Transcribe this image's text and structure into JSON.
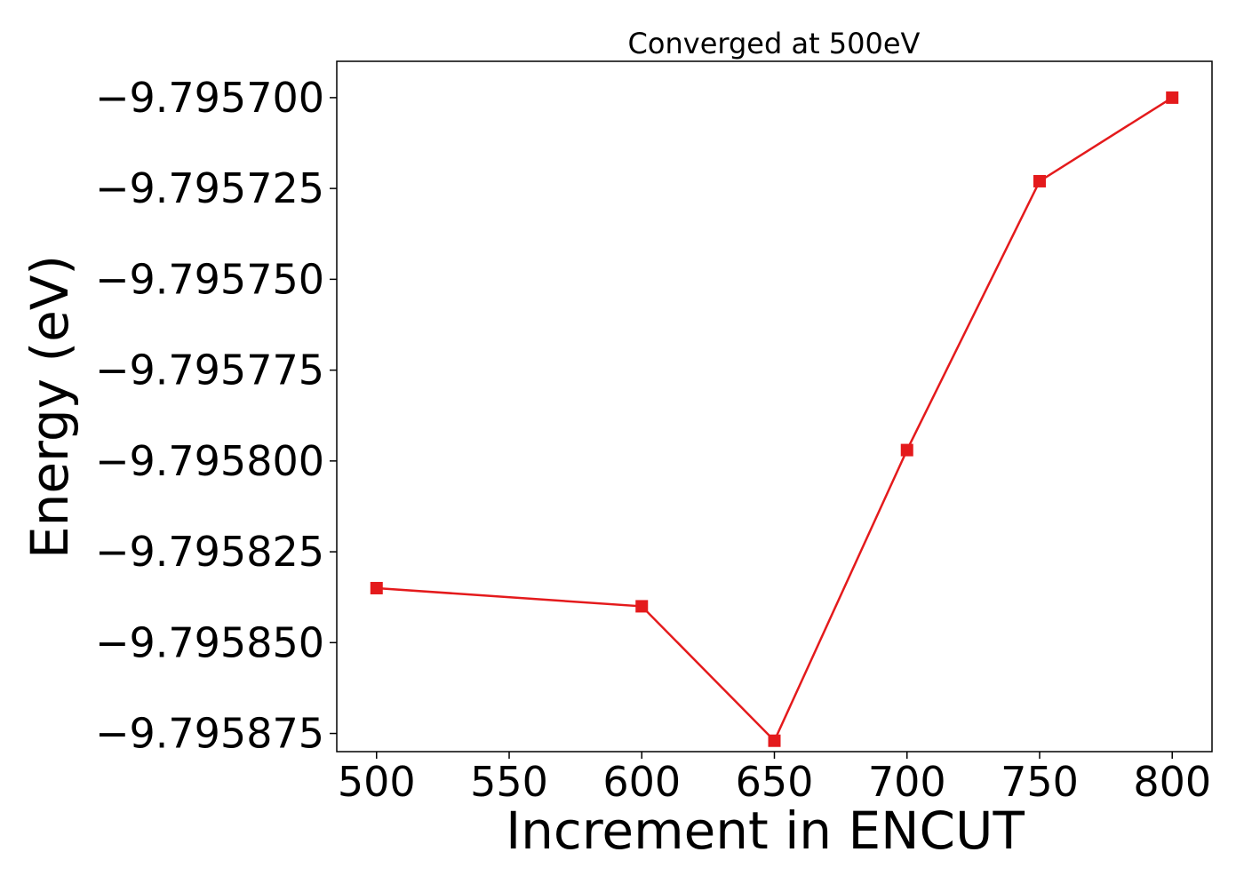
{
  "chart_data": {
    "type": "line",
    "title": "Converged at 500eV",
    "xlabel": "Increment in ENCUT",
    "ylabel": "Energy (eV)",
    "x": [
      500,
      600,
      650,
      700,
      750,
      800
    ],
    "series": [
      {
        "values": [
          -9.795835,
          -9.79584,
          -9.795877,
          -9.795797,
          -9.795723,
          -9.7957
        ],
        "color": "#e41a1c",
        "marker": "square"
      }
    ],
    "xticks": [
      500,
      550,
      600,
      650,
      700,
      750,
      800
    ],
    "xtick_labels": [
      "500",
      "550",
      "600",
      "650",
      "700",
      "750",
      "800"
    ],
    "yticks": [
      -9.7957,
      -9.795725,
      -9.79575,
      -9.795775,
      -9.7958,
      -9.795825,
      -9.79585,
      -9.795875
    ],
    "ytick_labels": [
      "−9.795700",
      "−9.795725",
      "−9.795750",
      "−9.795775",
      "−9.795800",
      "−9.795825",
      "−9.795850",
      "−9.795875"
    ],
    "xlim": [
      485,
      815
    ],
    "ylim": [
      -9.79588,
      -9.79569
    ],
    "grid": false,
    "legend": "none"
  }
}
